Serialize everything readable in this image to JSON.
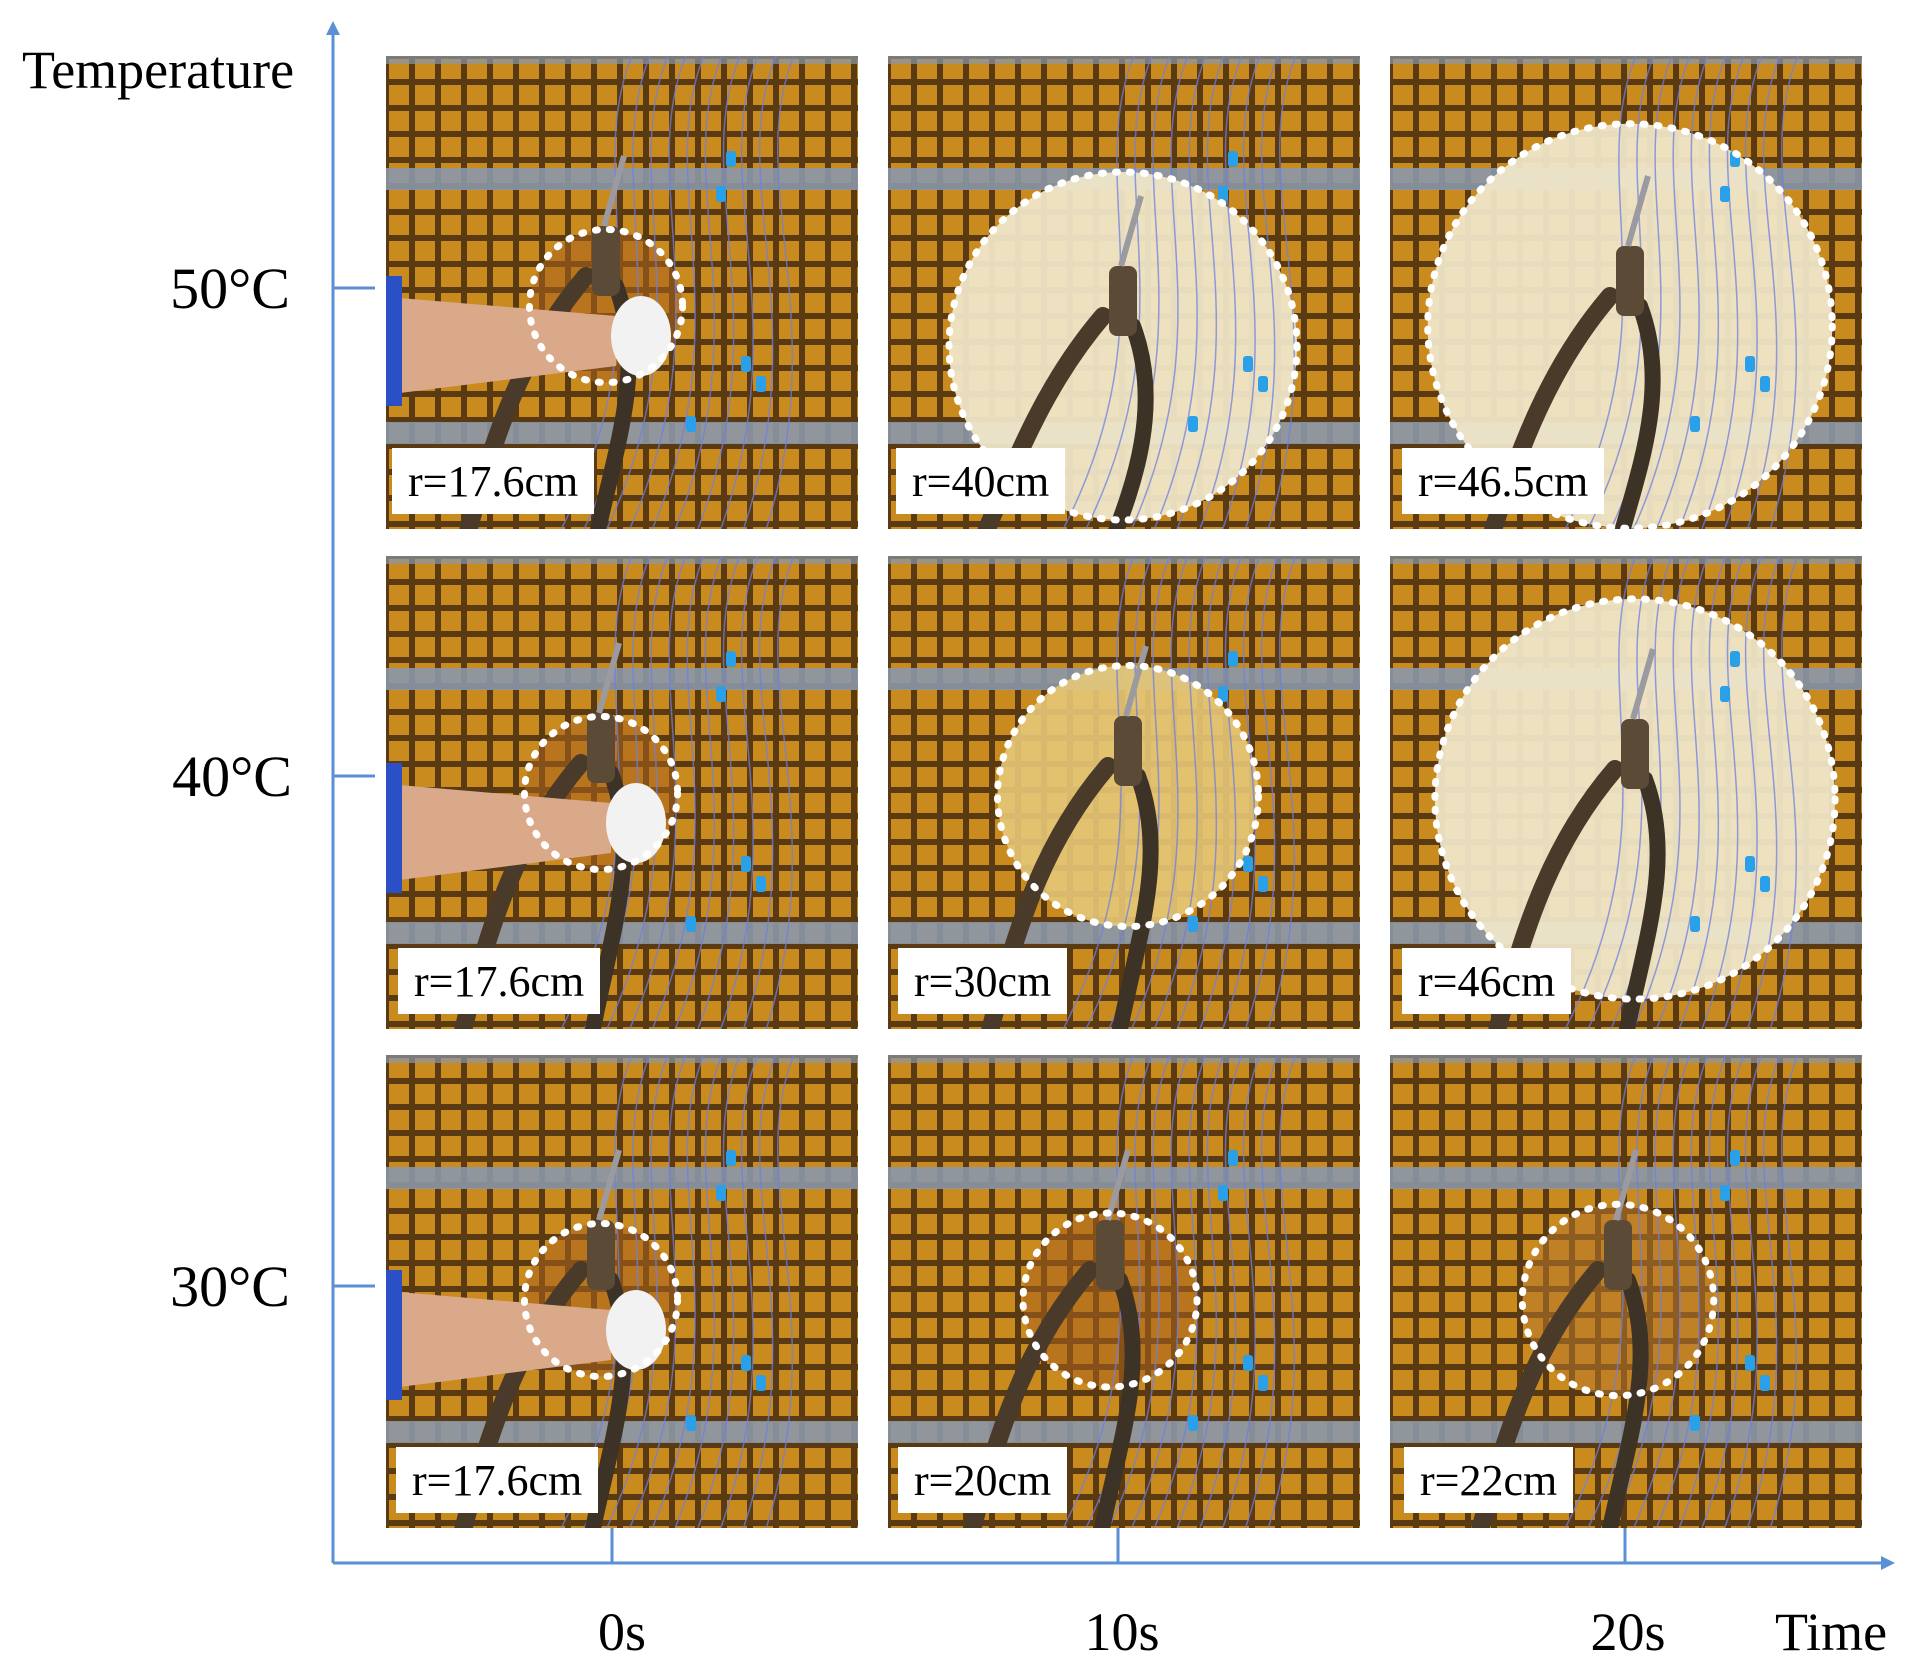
{
  "axes": {
    "y_title": "Temperature",
    "x_title": "Time",
    "y_ticks": [
      "50°C",
      "40°C",
      "30°C"
    ],
    "x_ticks": [
      "0s",
      "10s",
      "20s"
    ],
    "color": "#5b8fd6"
  },
  "grid": [
    {
      "temperature": "50°C",
      "panels": [
        {
          "time": "0s",
          "label": "r=17.6cm",
          "radius_cm": 17.6,
          "fluid": "brown",
          "hand": true
        },
        {
          "time": "10s",
          "label": "r=40cm",
          "radius_cm": 40,
          "fluid": "cream",
          "hand": false
        },
        {
          "time": "20s",
          "label": "r=46.5cm",
          "radius_cm": 46.5,
          "fluid": "cream",
          "hand": false
        }
      ]
    },
    {
      "temperature": "40°C",
      "panels": [
        {
          "time": "0s",
          "label": "r=17.6cm",
          "radius_cm": 17.6,
          "fluid": "brown",
          "hand": true
        },
        {
          "time": "10s",
          "label": "r=30cm",
          "radius_cm": 30,
          "fluid": "yellow",
          "hand": false
        },
        {
          "time": "20s",
          "label": "r=46cm",
          "radius_cm": 46,
          "fluid": "cream",
          "hand": false
        }
      ]
    },
    {
      "temperature": "30°C",
      "panels": [
        {
          "time": "0s",
          "label": "r=17.6cm",
          "radius_cm": 17.6,
          "fluid": "brown",
          "hand": true
        },
        {
          "time": "10s",
          "label": "r=20cm",
          "radius_cm": 20,
          "fluid": "brown",
          "hand": false
        },
        {
          "time": "20s",
          "label": "r=22cm",
          "radius_cm": 22,
          "fluid": "amber",
          "hand": false
        }
      ]
    }
  ],
  "colors": {
    "grate": "#c98a1e",
    "grate_dark": "#5a3a12",
    "rail": "#8a97a8",
    "cream": "#efe6c8",
    "yellow": "#e6c878",
    "brown": "#a9651e",
    "amber": "#b8782e",
    "wire": "#6f7fe0",
    "clip": "#2aa0e8"
  }
}
